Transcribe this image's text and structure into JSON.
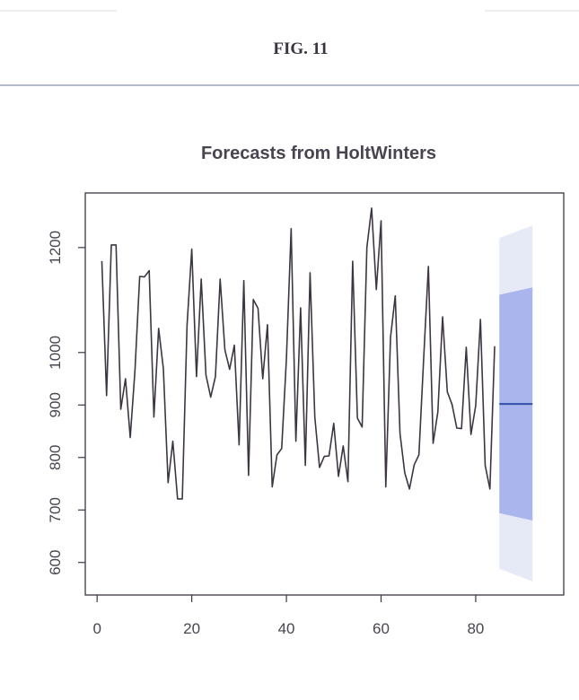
{
  "header": {
    "title": "FIG. 11"
  },
  "chart_data": {
    "type": "line",
    "title": "Forecasts from HoltWinters",
    "x": [
      1,
      2,
      3,
      4,
      5,
      6,
      7,
      8,
      9,
      10,
      11,
      12,
      13,
      14,
      15,
      16,
      17,
      18,
      19,
      20,
      21,
      22,
      23,
      24,
      25,
      26,
      27,
      28,
      29,
      30,
      31,
      32,
      33,
      34,
      35,
      36,
      37,
      38,
      39,
      40,
      41,
      42,
      43,
      44,
      45,
      46,
      47,
      48,
      49,
      50,
      51,
      52,
      53,
      54,
      55,
      56,
      57,
      58,
      59,
      60,
      61,
      62,
      63,
      64,
      65,
      66,
      67,
      68,
      69,
      70,
      71,
      72,
      73,
      74,
      75,
      76,
      77,
      78,
      79,
      80,
      81,
      82,
      83,
      84
    ],
    "values": [
      1174,
      918,
      1205,
      1205,
      892,
      950,
      838,
      966,
      1145,
      1144,
      1156,
      877,
      1046,
      969,
      752,
      831,
      721,
      721,
      1051,
      1197,
      954,
      1140,
      957,
      915,
      954,
      1140,
      1005,
      968,
      1014,
      824,
      1137,
      766,
      1101,
      1084,
      950,
      1053,
      744,
      805,
      817,
      988,
      1236,
      831,
      1085,
      785,
      1152,
      877,
      781,
      802,
      803,
      865,
      764,
      822,
      754,
      1174,
      875,
      858,
      1200,
      1275,
      1120,
      1251,
      744,
      1029,
      1108,
      846,
      771,
      740,
      786,
      805,
      988,
      1164,
      827,
      887,
      1068,
      925,
      901,
      856,
      855,
      1010,
      844,
      899,
      1063,
      785,
      740,
      1012
    ],
    "color": "#3d3642",
    "forecast": {
      "x": [
        85,
        92
      ],
      "mean": [
        902,
        902
      ],
      "lower_80": [
        694,
        680
      ],
      "upper_80": [
        1110,
        1124
      ],
      "lower_95": [
        588,
        564
      ],
      "upper_95": [
        1218,
        1242
      ],
      "mean_color": "#2f4fa8",
      "color_80": "#a9b5ec",
      "color_95": "#e6e9f6"
    },
    "xlim": [
      -2.5,
      98.6
    ],
    "ylim": [
      538,
      1304
    ],
    "xticks": [
      0,
      20,
      40,
      60,
      80
    ],
    "yticks": [
      600,
      700,
      800,
      900,
      1000,
      1200
    ]
  }
}
